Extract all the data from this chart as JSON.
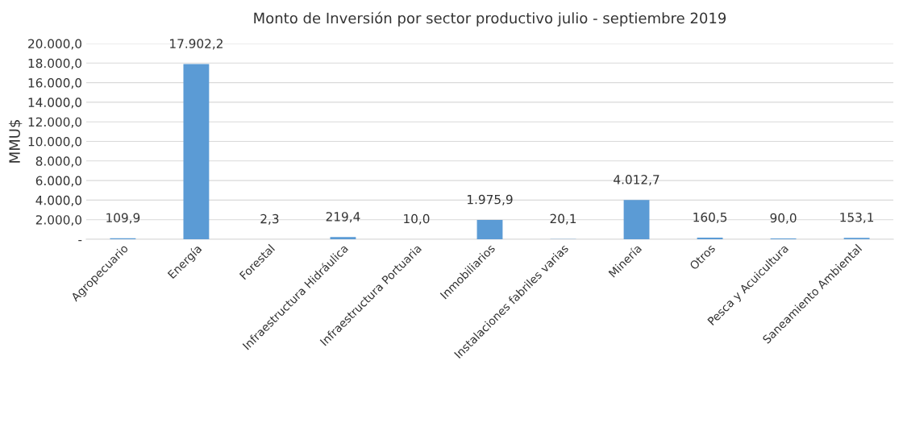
{
  "chart_data": {
    "type": "bar",
    "title": "Monto de Inversión por sector productivo julio - septiembre 2019",
    "ylabel": "MMU$",
    "categories": [
      "Agropecuario",
      "Energía",
      "Forestal",
      "Infraestructura Hidráulica",
      "Infraestructura Portuaria",
      "Inmobiliarios",
      "Instalaciones fabriles varias",
      "Minería",
      "Otros",
      "Pesca y Acuicultura",
      "Saneamiento Ambiental"
    ],
    "values": [
      109.9,
      17902.2,
      2.3,
      219.4,
      10.0,
      1975.9,
      20.1,
      4012.7,
      160.5,
      90.0,
      153.1
    ],
    "value_labels": [
      "109,9",
      "17.902,2",
      "2,3",
      "219,4",
      "10,0",
      "1.975,9",
      "20,1",
      "4.012,7",
      "160,5",
      "90,0",
      "153,1"
    ],
    "color": "#5b9bd5",
    "ylim": [
      0,
      20000
    ],
    "yticks": [
      {
        "value": 0,
        "label": "-"
      },
      {
        "value": 2000,
        "label": "2.000,0"
      },
      {
        "value": 4000,
        "label": "4.000,0"
      },
      {
        "value": 6000,
        "label": "6.000,0"
      },
      {
        "value": 8000,
        "label": "8.000,0"
      },
      {
        "value": 10000,
        "label": "10.000,0"
      },
      {
        "value": 12000,
        "label": "12.000,0"
      },
      {
        "value": 14000,
        "label": "14.000,0"
      },
      {
        "value": 16000,
        "label": "16.000,0"
      },
      {
        "value": 18000,
        "label": "18.000,0"
      },
      {
        "value": 20000,
        "label": "20.000,0"
      }
    ],
    "grid": "y"
  }
}
